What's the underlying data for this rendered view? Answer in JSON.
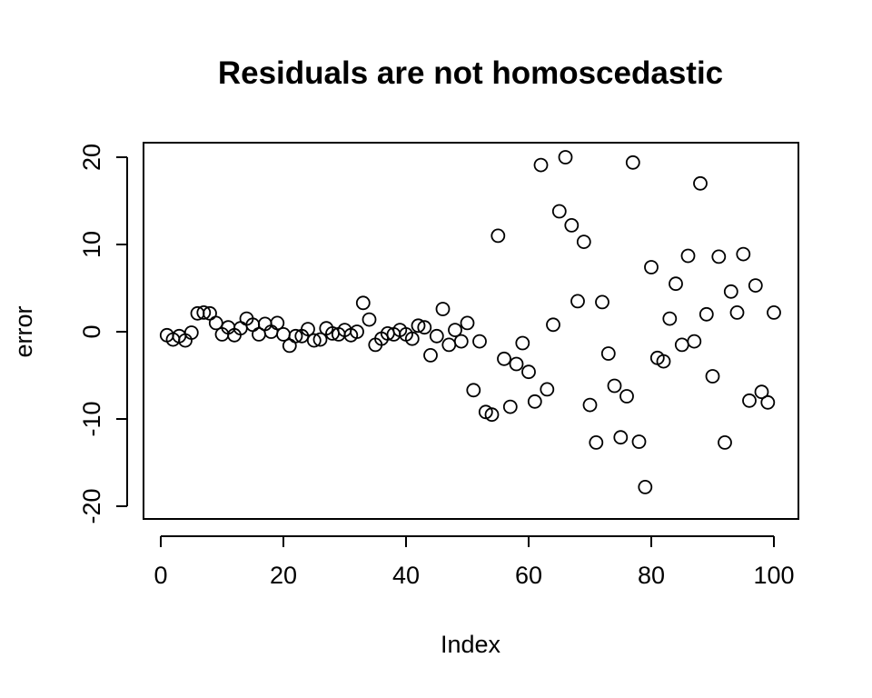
{
  "chart_data": {
    "type": "scatter",
    "title": "Residuals are not homoscedastic",
    "xlabel": "Index",
    "ylabel": "error",
    "xlim": [
      0,
      100
    ],
    "ylim": [
      -20,
      20
    ],
    "xticks": [
      "0",
      "20",
      "40",
      "60",
      "80",
      "100"
    ],
    "yticks": [
      "-20",
      "-10",
      "0",
      "10",
      "20"
    ],
    "grid": false,
    "marker": "open-circle",
    "x": [
      1,
      2,
      3,
      4,
      5,
      6,
      7,
      8,
      9,
      10,
      11,
      12,
      13,
      14,
      15,
      16,
      17,
      18,
      19,
      20,
      21,
      22,
      23,
      24,
      25,
      26,
      27,
      28,
      29,
      30,
      31,
      32,
      33,
      34,
      35,
      36,
      37,
      38,
      39,
      40,
      41,
      42,
      43,
      44,
      45,
      46,
      47,
      48,
      49,
      50,
      51,
      52,
      53,
      54,
      55,
      56,
      57,
      58,
      59,
      60,
      61,
      62,
      63,
      64,
      65,
      66,
      67,
      68,
      69,
      70,
      71,
      72,
      73,
      74,
      75,
      76,
      77,
      78,
      79,
      80,
      81,
      82,
      83,
      84,
      85,
      86,
      87,
      88,
      89,
      90,
      91,
      92,
      93,
      94,
      95,
      96,
      97,
      98,
      99,
      100
    ],
    "y": [
      -0.4,
      -0.9,
      -0.5,
      -1.0,
      -0.1,
      2.1,
      2.2,
      2.1,
      1.0,
      -0.3,
      0.5,
      -0.4,
      0.4,
      1.5,
      0.8,
      -0.3,
      0.9,
      0.0,
      1.0,
      -0.3,
      -1.6,
      -0.5,
      -0.5,
      0.3,
      -1.0,
      -0.9,
      0.4,
      -0.2,
      -0.3,
      0.2,
      -0.4,
      0.0,
      3.3,
      1.4,
      -1.5,
      -0.8,
      -0.2,
      -0.3,
      0.2,
      -0.3,
      -0.8,
      0.7,
      0.5,
      -2.7,
      -0.5,
      2.6,
      -1.5,
      0.2,
      -1.1,
      1.0,
      -6.7,
      -1.1,
      -9.2,
      -9.5,
      11.0,
      -3.1,
      -8.6,
      -3.7,
      -1.3,
      -4.6,
      -8.0,
      19.1,
      -6.6,
      0.8,
      13.8,
      20.0,
      12.2,
      3.5,
      10.3,
      -8.4,
      -12.7,
      3.4,
      -2.5,
      -6.2,
      -12.1,
      -7.4,
      19.4,
      -12.6,
      -17.8,
      7.4,
      -3.0,
      -3.4,
      1.5,
      5.5,
      -1.5,
      8.7,
      -1.1,
      17.0,
      2.0,
      -5.1,
      8.6,
      -12.7,
      4.6,
      2.2,
      8.9,
      -7.9,
      5.3,
      -6.9,
      -8.1,
      2.2
    ]
  }
}
